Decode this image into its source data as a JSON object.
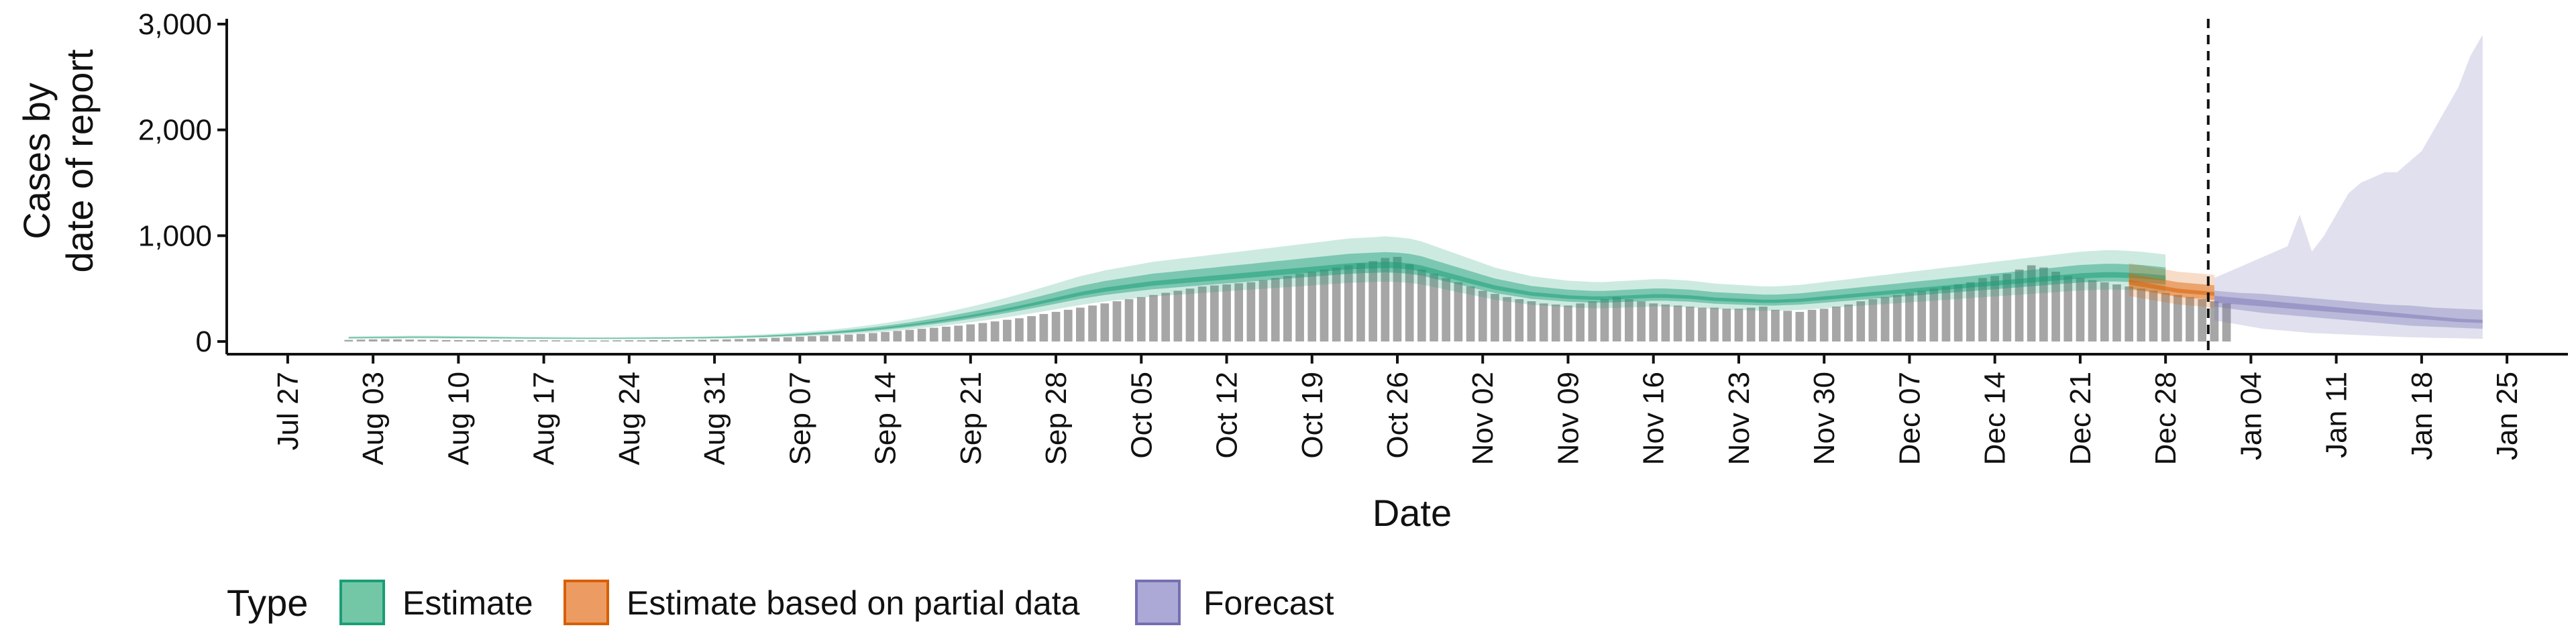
{
  "chart_data": {
    "type": "bar",
    "xlabel": "Date",
    "ylabel_lines": [
      "Cases by",
      "date of report"
    ],
    "ylim": [
      -120,
      3050
    ],
    "y_ticks": [
      0,
      1000,
      2000,
      3000
    ],
    "y_tick_labels": [
      "0",
      "1,000",
      "2,000",
      "3,000"
    ],
    "x_domain": [
      "2020-07-22",
      "2021-01-30"
    ],
    "x_ticks": [
      "2020-07-27",
      "2020-08-03",
      "2020-08-10",
      "2020-08-17",
      "2020-08-24",
      "2020-08-31",
      "2020-09-07",
      "2020-09-14",
      "2020-09-21",
      "2020-09-28",
      "2020-10-05",
      "2020-10-12",
      "2020-10-19",
      "2020-10-26",
      "2020-11-02",
      "2020-11-09",
      "2020-11-16",
      "2020-11-23",
      "2020-11-30",
      "2020-12-07",
      "2020-12-14",
      "2020-12-21",
      "2020-12-28",
      "2021-01-04",
      "2021-01-11",
      "2021-01-18",
      "2021-01-25"
    ],
    "x_tick_labels": [
      "Jul 27",
      "Aug 03",
      "Aug 10",
      "Aug 17",
      "Aug 24",
      "Aug 31",
      "Sep 07",
      "Sep 14",
      "Sep 21",
      "Sep 28",
      "Oct 05",
      "Oct 12",
      "Oct 19",
      "Oct 26",
      "Nov 02",
      "Nov 09",
      "Nov 16",
      "Nov 23",
      "Nov 30",
      "Dec 07",
      "Dec 14",
      "Dec 21",
      "Dec 28",
      "Jan 04",
      "Jan 11",
      "Jan 18",
      "Jan 25"
    ],
    "forecast_start": "2021-01-01",
    "observed": {
      "start": "2020-08-01",
      "values": [
        15,
        18,
        20,
        22,
        20,
        18,
        16,
        15,
        14,
        14,
        13,
        13,
        12,
        12,
        12,
        11,
        11,
        11,
        10,
        10,
        10,
        10,
        11,
        12,
        12,
        13,
        13,
        14,
        15,
        16,
        18,
        20,
        23,
        26,
        30,
        35,
        40,
        45,
        50,
        55,
        60,
        66,
        72,
        80,
        90,
        100,
        110,
        120,
        130,
        140,
        150,
        162,
        175,
        190,
        205,
        220,
        240,
        260,
        280,
        300,
        320,
        340,
        360,
        380,
        400,
        420,
        440,
        460,
        480,
        500,
        520,
        530,
        540,
        550,
        560,
        580,
        600,
        620,
        640,
        660,
        680,
        700,
        720,
        740,
        760,
        790,
        800,
        730,
        680,
        640,
        600,
        560,
        520,
        480,
        450,
        420,
        400,
        380,
        360,
        350,
        340,
        360,
        380,
        400,
        420,
        400,
        380,
        360,
        350,
        340,
        330,
        320,
        320,
        310,
        310,
        320,
        330,
        300,
        290,
        280,
        300,
        310,
        330,
        350,
        380,
        400,
        420,
        440,
        460,
        480,
        500,
        520,
        540,
        560,
        600,
        620,
        640,
        680,
        720,
        700,
        660,
        620,
        600,
        580,
        560,
        540,
        520,
        500,
        480,
        460,
        440,
        420,
        400,
        380,
        360
      ]
    },
    "series": [
      {
        "name": "Estimate",
        "color": "#1B9E77",
        "start": "2020-08-01",
        "median": [
          35,
          36,
          37,
          38,
          39,
          40,
          40,
          40,
          39,
          38,
          37,
          36,
          35,
          34,
          33,
          32,
          32,
          31,
          31,
          30,
          30,
          30,
          30,
          31,
          31,
          32,
          32,
          33,
          34,
          35,
          37,
          39,
          42,
          45,
          49,
          54,
          59,
          65,
          71,
          78,
          86,
          95,
          105,
          116,
          128,
          141,
          155,
          170,
          186,
          203,
          221,
          240,
          260,
          281,
          303,
          326,
          350,
          375,
          400,
          425,
          450,
          470,
          490,
          505,
          520,
          535,
          550,
          560,
          570,
          580,
          590,
          600,
          610,
          620,
          630,
          640,
          650,
          660,
          670,
          680,
          690,
          700,
          710,
          715,
          720,
          725,
          720,
          710,
          690,
          660,
          630,
          600,
          570,
          540,
          510,
          490,
          470,
          450,
          440,
          430,
          420,
          415,
          410,
          410,
          415,
          420,
          425,
          430,
          430,
          425,
          420,
          410,
          400,
          395,
          390,
          385,
          380,
          380,
          385,
          390,
          400,
          410,
          420,
          430,
          440,
          450,
          460,
          470,
          480,
          490,
          500,
          510,
          520,
          530,
          540,
          550,
          560,
          570,
          580,
          590,
          600,
          610,
          620,
          625,
          630,
          630,
          625,
          620,
          610,
          600
        ],
        "lower90": [
          25,
          26,
          27,
          28,
          28,
          29,
          29,
          29,
          28,
          27,
          27,
          26,
          25,
          24,
          24,
          23,
          23,
          22,
          22,
          21,
          21,
          21,
          21,
          22,
          22,
          23,
          23,
          24,
          25,
          25,
          27,
          28,
          30,
          33,
          36,
          39,
          43,
          47,
          52,
          57,
          63,
          70,
          77,
          85,
          94,
          104,
          115,
          127,
          139,
          152,
          166,
          181,
          197,
          213,
          230,
          248,
          266,
          285,
          305,
          325,
          345,
          362,
          378,
          390,
          402,
          414,
          426,
          434,
          442,
          450,
          458,
          466,
          474,
          482,
          490,
          498,
          506,
          514,
          522,
          530,
          538,
          546,
          554,
          558,
          562,
          566,
          562,
          554,
          538,
          514,
          490,
          466,
          442,
          418,
          394,
          378,
          362,
          346,
          338,
          330,
          322,
          318,
          314,
          314,
          318,
          322,
          326,
          330,
          330,
          326,
          322,
          314,
          306,
          302,
          298,
          294,
          290,
          290,
          294,
          298,
          306,
          314,
          322,
          330,
          338,
          346,
          354,
          362,
          370,
          378,
          386,
          394,
          402,
          410,
          418,
          426,
          434,
          442,
          450,
          458,
          466,
          474,
          482,
          486,
          490,
          490,
          486,
          482,
          474,
          466
        ],
        "upper90": [
          48,
          49,
          51,
          52,
          53,
          55,
          55,
          55,
          53,
          52,
          51,
          49,
          48,
          47,
          45,
          44,
          44,
          42,
          42,
          41,
          41,
          41,
          41,
          42,
          42,
          44,
          44,
          45,
          47,
          48,
          51,
          53,
          58,
          62,
          67,
          74,
          81,
          89,
          97,
          107,
          118,
          130,
          144,
          159,
          175,
          193,
          212,
          233,
          255,
          278,
          303,
          329,
          356,
          385,
          415,
          447,
          480,
          514,
          548,
          583,
          617,
          644,
          672,
          692,
          713,
          733,
          754,
          767,
          781,
          795,
          808,
          822,
          836,
          849,
          863,
          877,
          890,
          904,
          918,
          932,
          945,
          959,
          973,
          980,
          986,
          993,
          986,
          973,
          945,
          904,
          863,
          822,
          781,
          740,
          699,
          671,
          644,
          617,
          603,
          589,
          575,
          569,
          562,
          562,
          569,
          575,
          582,
          589,
          589,
          582,
          575,
          562,
          548,
          541,
          534,
          527,
          521,
          521,
          527,
          534,
          548,
          562,
          575,
          589,
          603,
          617,
          630,
          644,
          658,
          671,
          685,
          699,
          712,
          726,
          740,
          754,
          767,
          781,
          795,
          808,
          822,
          836,
          849,
          856,
          863,
          863,
          856,
          849,
          836,
          822
        ]
      },
      {
        "name": "Estimate based on partial data",
        "color": "#D95F02",
        "start": "2020-12-25",
        "median": [
          560,
          540,
          520,
          500,
          480,
          470,
          460,
          450
        ],
        "lower90": [
          430,
          410,
          390,
          370,
          350,
          340,
          330,
          320
        ],
        "upper90": [
          740,
          720,
          700,
          680,
          660,
          650,
          640,
          630
        ]
      },
      {
        "name": "Forecast",
        "color": "#7570B3",
        "start": "2021-01-01",
        "median": [
          400,
          390,
          380,
          370,
          360,
          350,
          340,
          330,
          320,
          310,
          300,
          290,
          280,
          270,
          260,
          250,
          240,
          230,
          220,
          210,
          200,
          195,
          190
        ],
        "lower50": [
          330,
          315,
          300,
          285,
          270,
          260,
          250,
          240,
          230,
          220,
          210,
          200,
          190,
          180,
          170,
          160,
          150,
          145,
          140,
          135,
          130,
          125,
          120
        ],
        "upper50": [
          480,
          470,
          460,
          455,
          450,
          440,
          430,
          420,
          410,
          400,
          390,
          380,
          370,
          360,
          350,
          345,
          340,
          330,
          320,
          315,
          310,
          305,
          300
        ],
        "lower90": [
          200,
          180,
          160,
          140,
          120,
          110,
          100,
          90,
          80,
          75,
          70,
          65,
          60,
          55,
          50,
          45,
          40,
          38,
          35,
          32,
          30,
          28,
          25
        ],
        "upper90": [
          600,
          650,
          700,
          750,
          800,
          850,
          900,
          1200,
          850,
          1000,
          1200,
          1400,
          1500,
          1550,
          1600,
          1600,
          1700,
          1800,
          2000,
          2200,
          2400,
          2700,
          2900
        ]
      }
    ],
    "legend": {
      "title": "Type",
      "position": "bottom-left",
      "items": [
        {
          "label": "Estimate",
          "fill": "#74C7A6",
          "stroke": "#1B9E77"
        },
        {
          "label": "Estimate based on partial data",
          "fill": "#EC9C63",
          "stroke": "#D95F02"
        },
        {
          "label": "Forecast",
          "fill": "#ADA9D6",
          "stroke": "#7570B3"
        }
      ]
    }
  }
}
